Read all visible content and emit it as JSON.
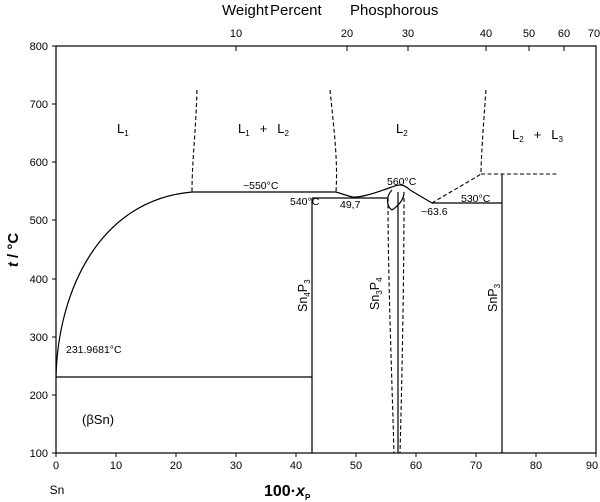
{
  "top_axis": {
    "title_words": [
      "Weight",
      "Percent",
      "Phosphorous"
    ],
    "ticks": [
      "10",
      "20",
      "30",
      "40",
      "50",
      "60",
      "70"
    ]
  },
  "bottom_axis": {
    "ticks": [
      "0",
      "10",
      "20",
      "30",
      "40",
      "50",
      "60",
      "70",
      "80",
      "90"
    ],
    "sn_label": "Sn",
    "title_main": "100·",
    "title_var": "x",
    "title_sub": "P"
  },
  "left_axis": {
    "ticks": [
      "100",
      "200",
      "300",
      "400",
      "500",
      "600",
      "700",
      "800"
    ],
    "title_var": "t",
    "title_unit": " / °C"
  },
  "regions": {
    "l1": {
      "main": "L",
      "sub": "1"
    },
    "l1_l2": {
      "a": "L",
      "a_sub": "1",
      "plus": "+",
      "b": "L",
      "b_sub": "2"
    },
    "l2": {
      "main": "L",
      "sub": "2"
    },
    "l2_l3": {
      "a": "L",
      "a_sub": "2",
      "plus": "+",
      "b": "L",
      "b_sub": "3"
    },
    "beta_sn": "(βSn)"
  },
  "annotations": {
    "t550": "~550°C",
    "t560": "560°C",
    "t540": "540°C",
    "c49_7": "49,7",
    "c63_6": "~63.6",
    "t530": "530°C",
    "t231": "231.9681°C"
  },
  "compounds": {
    "sn4p3": {
      "a": "Sn",
      "a_sub": "4",
      "b": "P",
      "b_sub": "3"
    },
    "sn3p4": {
      "a": "Sn",
      "a_sub": "3",
      "b": "P",
      "b_sub": "4"
    },
    "snp3": {
      "a": "SnP",
      "b_sub": "3"
    }
  }
}
